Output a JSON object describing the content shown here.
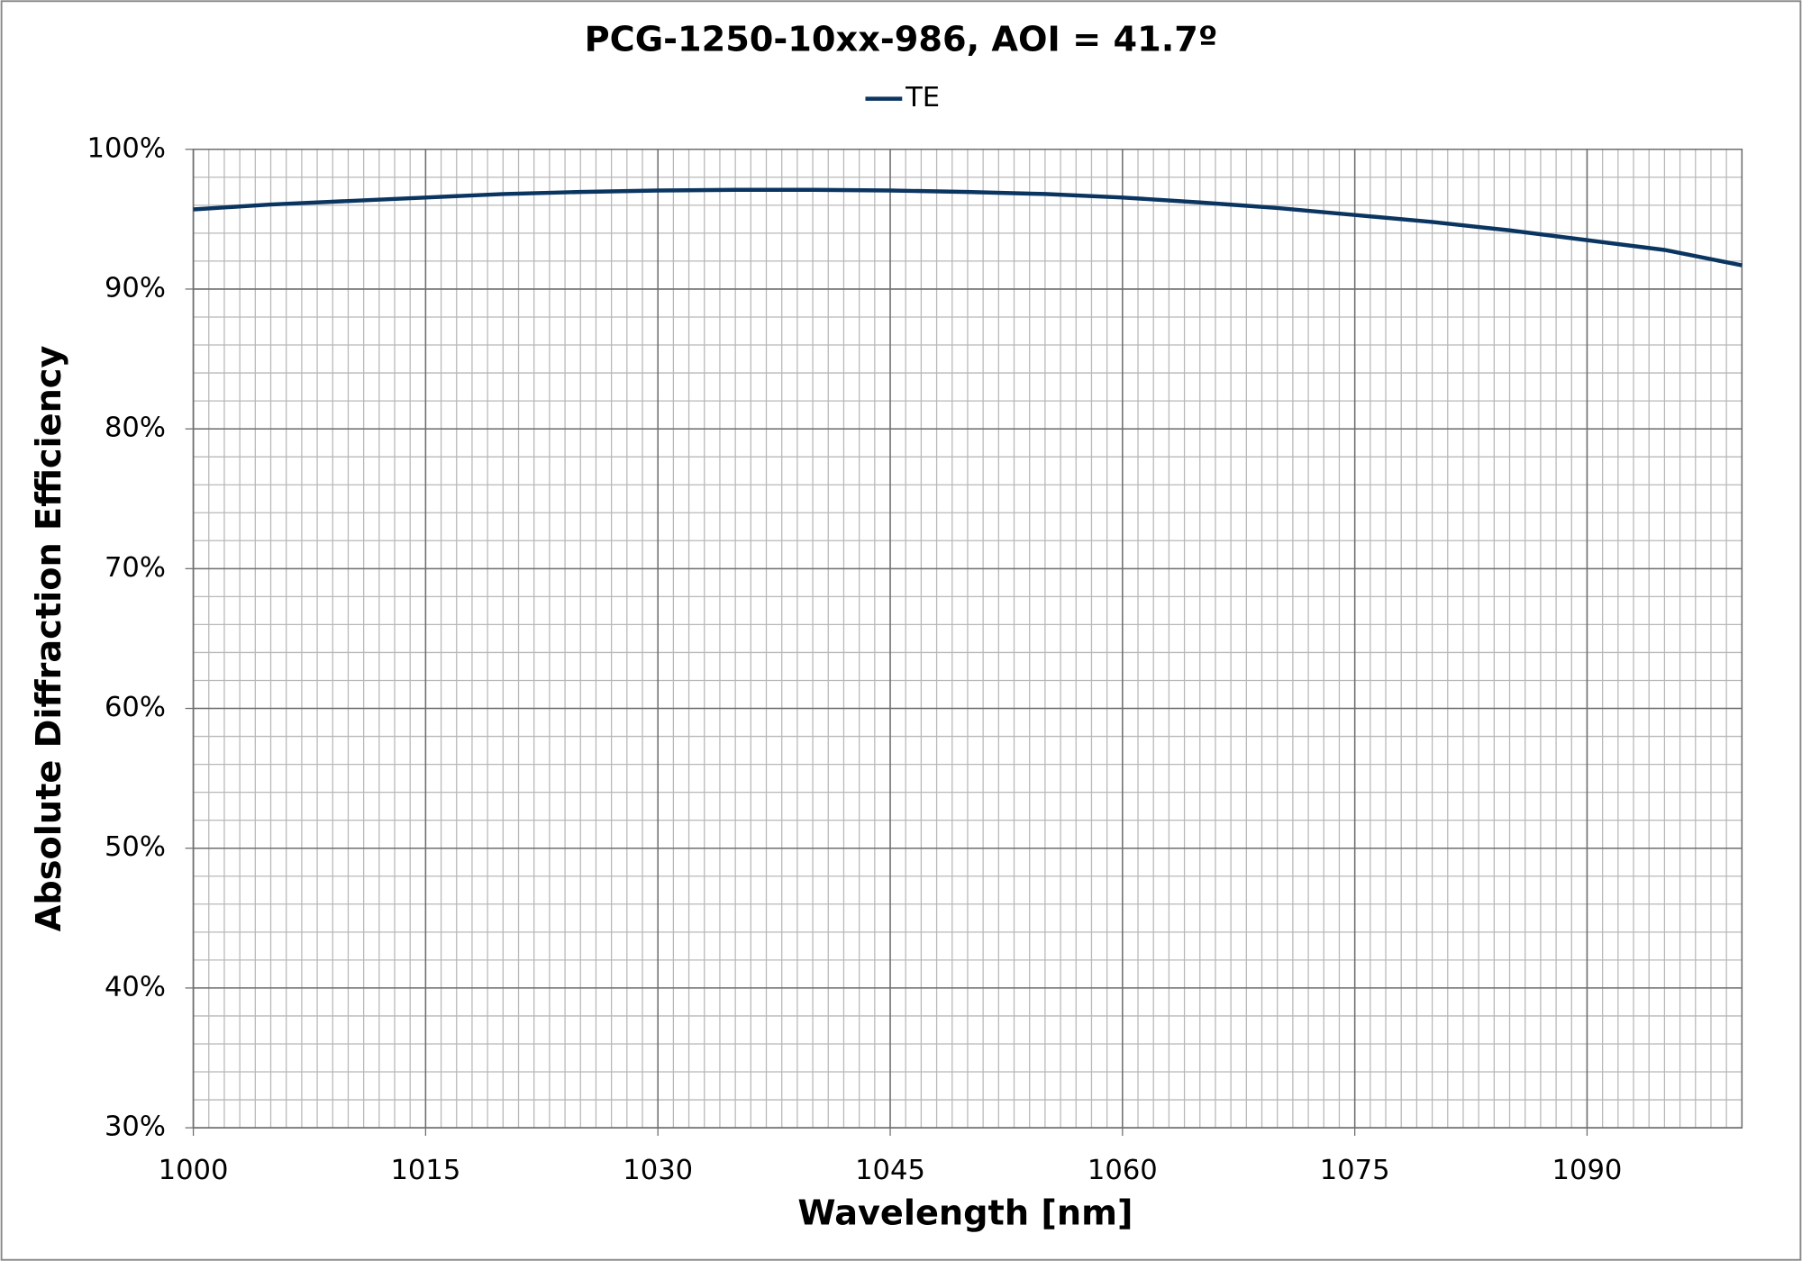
{
  "chart_data": {
    "type": "line",
    "title": "PCG-1250-10xx-986, AOI = 41.7º",
    "xlabel": "Wavelength [nm]",
    "ylabel": "Absolute Diffraction Efficiency",
    "x": [
      1000,
      1005,
      1010,
      1015,
      1020,
      1025,
      1030,
      1035,
      1040,
      1045,
      1050,
      1055,
      1060,
      1065,
      1070,
      1075,
      1080,
      1085,
      1090,
      1095,
      1100
    ],
    "series": [
      {
        "name": "TE",
        "color": "#0b3561",
        "values": [
          95.7,
          96.05,
          96.3,
          96.55,
          96.8,
          96.95,
          97.05,
          97.1,
          97.1,
          97.05,
          96.95,
          96.8,
          96.55,
          96.2,
          95.8,
          95.3,
          94.8,
          94.2,
          93.5,
          92.8,
          91.7
        ]
      }
    ],
    "xlim": [
      1000,
      1100
    ],
    "xticks": [
      1000,
      1015,
      1030,
      1045,
      1060,
      1075,
      1090
    ],
    "ylim": [
      30,
      100
    ],
    "yticks": [
      {
        "value": 30,
        "label": "30%"
      },
      {
        "value": 40,
        "label": "40%"
      },
      {
        "value": 50,
        "label": "50%"
      },
      {
        "value": 60,
        "label": "60%"
      },
      {
        "value": 70,
        "label": "70%"
      },
      {
        "value": 80,
        "label": "80%"
      },
      {
        "value": 90,
        "label": "90%"
      },
      {
        "value": 100,
        "label": "100%"
      }
    ],
    "grid": true,
    "x_minor_step": 1,
    "y_minor_step": 2,
    "legend": "top"
  }
}
